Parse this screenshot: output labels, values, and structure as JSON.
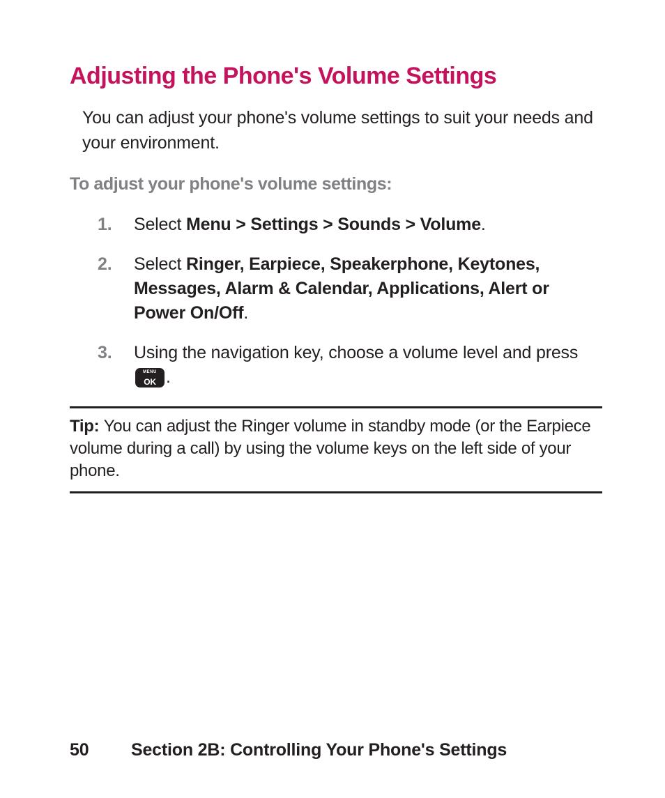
{
  "colors": {
    "heading": "#c3135c",
    "body_text": "#231f20",
    "muted": "#808184",
    "background": "#ffffff",
    "key_bg": "#231f20",
    "key_text": "#ffffff"
  },
  "typography": {
    "heading_size_pt": 25,
    "body_size_pt": 18,
    "footer_size_pt": 18
  },
  "title": "Adjusting the Phone's Volume Settings",
  "intro": "You can adjust your phone's volume settings to suit your needs and your environment.",
  "subhead": "To adjust your phone's volume settings:",
  "steps": [
    {
      "num": "1.",
      "prefix": "Select ",
      "bold": "Menu > Settings > Sounds > Volume",
      "suffix": "."
    },
    {
      "num": "2.",
      "prefix": "Select ",
      "bold": "Ringer, Earpiece, Speakerphone, Keytones, Messages, Alarm & Calendar, Applications, Alert or Power On/Off",
      "suffix": "."
    },
    {
      "num": "3.",
      "prefix": "Using the navigation key, choose a volume level and press ",
      "bold": "",
      "suffix": ".",
      "has_key_icon": true
    }
  ],
  "key_icon": {
    "top_label": "MENU",
    "bottom_label": "OK"
  },
  "tip": {
    "label": "Tip: ",
    "text": "You can adjust the Ringer volume in standby mode (or the Earpiece volume during a call) by using the volume keys on the left side of your phone."
  },
  "footer": {
    "page_number": "50",
    "section": "Section 2B: Controlling Your Phone's Settings"
  }
}
